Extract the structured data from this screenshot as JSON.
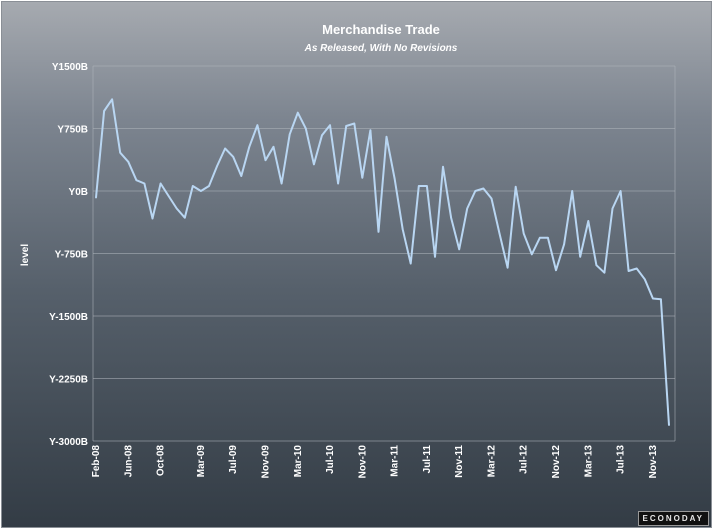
{
  "chart_data": {
    "type": "line",
    "title": "Merchandise Trade",
    "subtitle": "As Released, With No Revisions",
    "ylabel": "level",
    "xlabel": "",
    "ylim": [
      -3000,
      1500
    ],
    "y_ticks": [
      1500,
      750,
      0,
      -750,
      -1500,
      -2250,
      -3000
    ],
    "y_tick_labels": [
      "Y1500B",
      "Y750B",
      "Y0B",
      "Y-750B",
      "Y-1500B",
      "Y-2250B",
      "Y-3000B"
    ],
    "x_tick_labels": [
      "Feb-08",
      "Jun-08",
      "Oct-08",
      "Mar-09",
      "Jul-09",
      "Nov-09",
      "Mar-10",
      "Jul-10",
      "Nov-10",
      "Mar-11",
      "Jul-11",
      "Nov-11",
      "Mar-12",
      "Jul-12",
      "Nov-12",
      "Mar-13",
      "Jul-13",
      "Nov-13"
    ],
    "grid": true,
    "legend": "none",
    "line_color": "#b9d6f2",
    "series": [
      {
        "values": [
          -80,
          960,
          1100,
          460,
          350,
          130,
          90,
          -330,
          90,
          -60,
          -210,
          -320,
          60,
          0,
          60,
          300,
          510,
          410,
          180,
          530,
          790,
          370,
          530,
          90,
          680,
          940,
          750,
          320,
          670,
          790,
          90,
          780,
          810,
          160,
          730,
          -490,
          650,
          150,
          -460,
          -870,
          60,
          60,
          -790,
          290,
          -320,
          -700,
          -210,
          0,
          30,
          -90,
          -510,
          -920,
          50,
          -510,
          -760,
          -560,
          -560,
          -950,
          -640,
          0,
          -790,
          -360,
          -890,
          -980,
          -210,
          0,
          -960,
          -930,
          -1060,
          -1290,
          -1300,
          -2810
        ]
      }
    ]
  },
  "logo_text": "ECONODAY"
}
